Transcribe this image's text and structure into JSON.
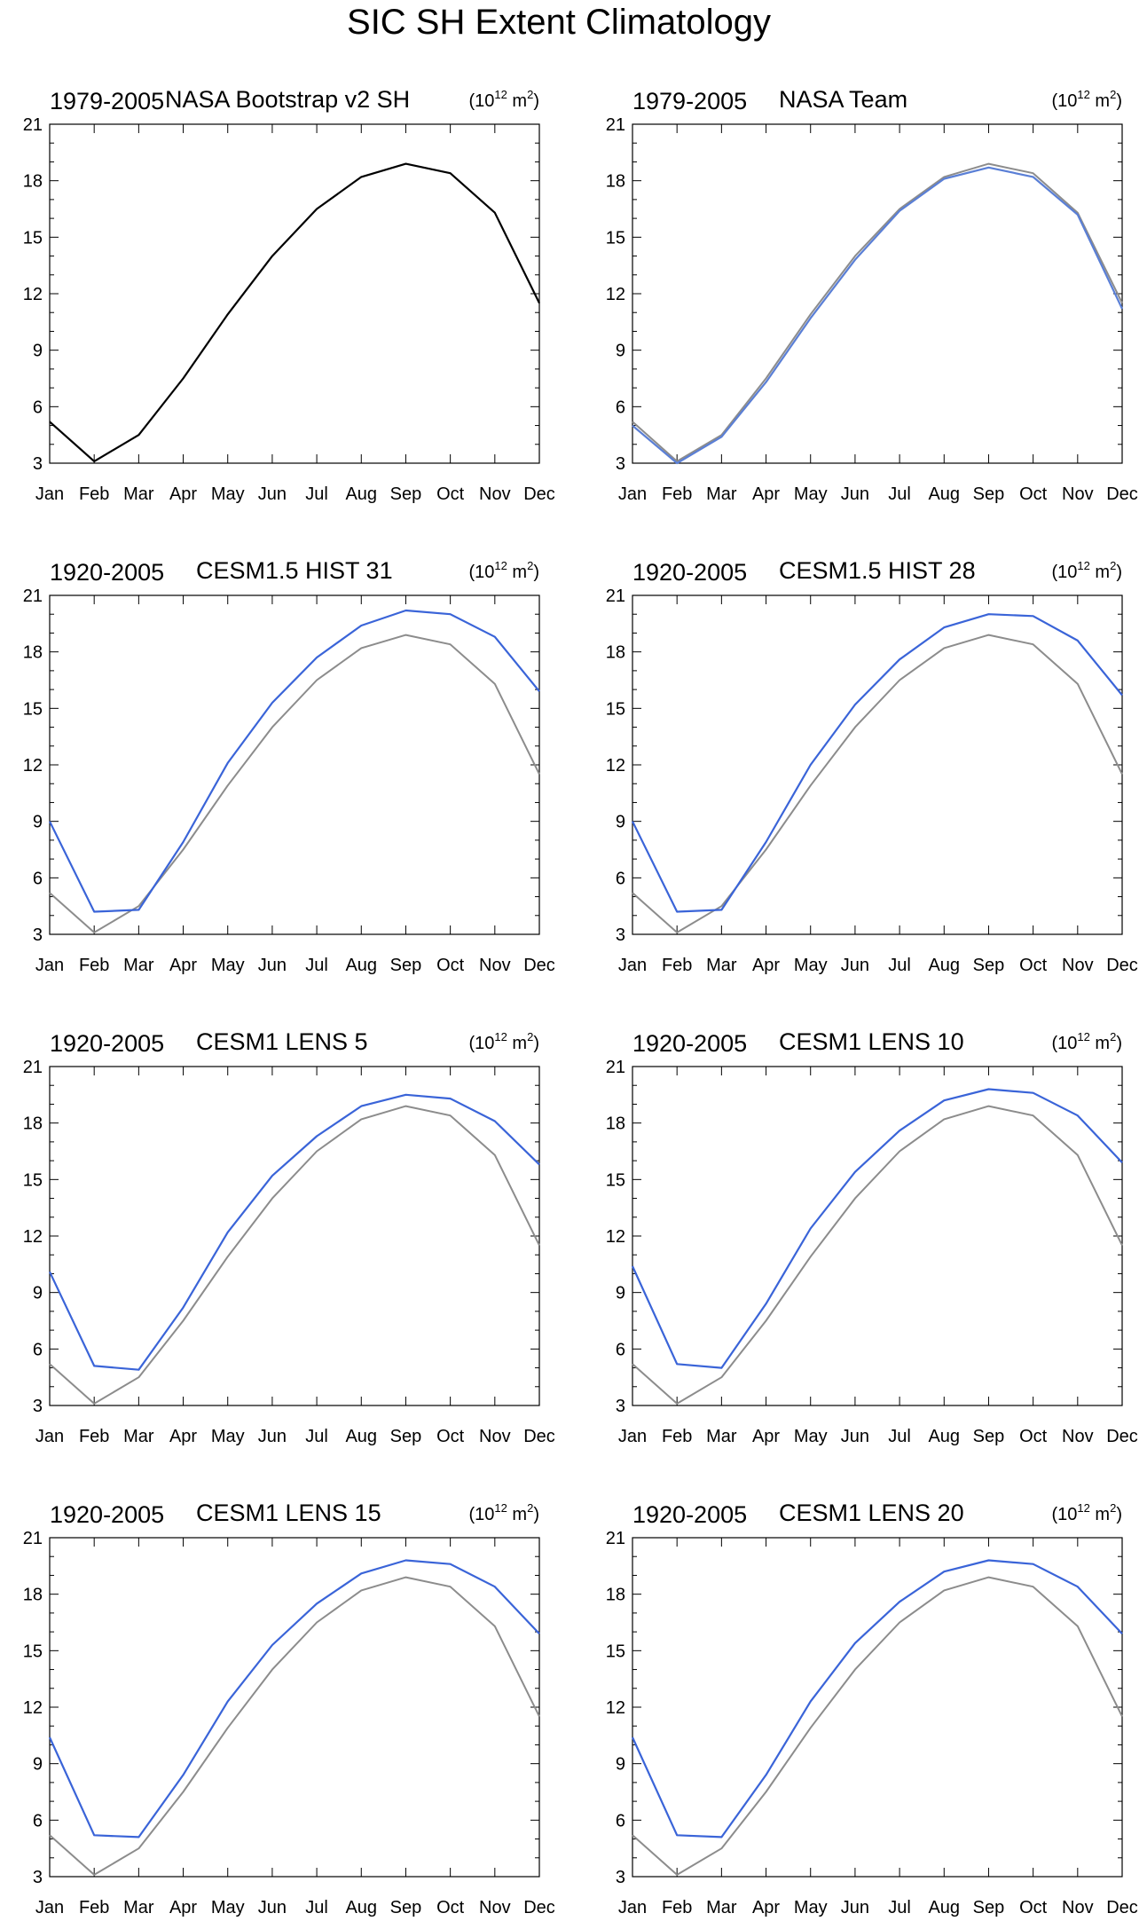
{
  "figure_title": "SIC SH Extent Climatology",
  "units": {
    "prefix": "(10",
    "exponent": "12",
    "middle": " m",
    "sq": "2",
    "suffix": ")"
  },
  "colors": {
    "obs": "#000000",
    "ref": "#8c8c8c",
    "model": "#3a64d8",
    "nasa_team": "#5a7fd6"
  },
  "chart_data": [
    {
      "type": "line",
      "period": "1979-2005",
      "title": "NASA Bootstrap v2 SH",
      "categories": [
        "Jan",
        "Feb",
        "Mar",
        "Apr",
        "May",
        "Jun",
        "Jul",
        "Aug",
        "Sep",
        "Oct",
        "Nov",
        "Dec"
      ],
      "ylim": [
        3,
        21
      ],
      "yticks": [
        "3",
        "6",
        "9",
        "12",
        "15",
        "18",
        "21"
      ],
      "series": [
        {
          "name": "NASA Bootstrap v2 SH",
          "color_key": "obs",
          "values": [
            5.2,
            3.1,
            4.5,
            7.5,
            10.9,
            14.0,
            16.5,
            18.2,
            18.9,
            18.4,
            16.3,
            11.5
          ]
        }
      ]
    },
    {
      "type": "line",
      "period": "1979-2005",
      "title": "NASA Team",
      "categories": [
        "Jan",
        "Feb",
        "Mar",
        "Apr",
        "May",
        "Jun",
        "Jul",
        "Aug",
        "Sep",
        "Oct",
        "Nov",
        "Dec"
      ],
      "ylim": [
        3,
        21
      ],
      "yticks": [
        "3",
        "6",
        "9",
        "12",
        "15",
        "18",
        "21"
      ],
      "series": [
        {
          "name": "NASA Bootstrap v2 SH",
          "color_key": "ref",
          "values": [
            5.2,
            3.1,
            4.5,
            7.5,
            10.9,
            14.0,
            16.5,
            18.2,
            18.9,
            18.4,
            16.3,
            11.5
          ]
        },
        {
          "name": "NASA Team",
          "color_key": "nasa_team",
          "values": [
            5.0,
            3.0,
            4.4,
            7.3,
            10.7,
            13.8,
            16.4,
            18.1,
            18.7,
            18.2,
            16.2,
            11.2
          ]
        }
      ]
    },
    {
      "type": "line",
      "period": "1920-2005",
      "title": "CESM1.5 HIST 31",
      "categories": [
        "Jan",
        "Feb",
        "Mar",
        "Apr",
        "May",
        "Jun",
        "Jul",
        "Aug",
        "Sep",
        "Oct",
        "Nov",
        "Dec"
      ],
      "ylim": [
        3,
        21
      ],
      "yticks": [
        "3",
        "6",
        "9",
        "12",
        "15",
        "18",
        "21"
      ],
      "series": [
        {
          "name": "NASA Bootstrap v2 SH",
          "color_key": "ref",
          "values": [
            5.2,
            3.1,
            4.5,
            7.5,
            10.9,
            14.0,
            16.5,
            18.2,
            18.9,
            18.4,
            16.3,
            11.5
          ]
        },
        {
          "name": "CESM1.5 HIST 31",
          "color_key": "model",
          "values": [
            9.0,
            4.2,
            4.3,
            7.9,
            12.1,
            15.3,
            17.7,
            19.4,
            20.2,
            20.0,
            18.8,
            15.9
          ]
        }
      ]
    },
    {
      "type": "line",
      "period": "1920-2005",
      "title": "CESM1.5 HIST 28",
      "categories": [
        "Jan",
        "Feb",
        "Mar",
        "Apr",
        "May",
        "Jun",
        "Jul",
        "Aug",
        "Sep",
        "Oct",
        "Nov",
        "Dec"
      ],
      "ylim": [
        3,
        21
      ],
      "yticks": [
        "3",
        "6",
        "9",
        "12",
        "15",
        "18",
        "21"
      ],
      "series": [
        {
          "name": "NASA Bootstrap v2 SH",
          "color_key": "ref",
          "values": [
            5.2,
            3.1,
            4.5,
            7.5,
            10.9,
            14.0,
            16.5,
            18.2,
            18.9,
            18.4,
            16.3,
            11.5
          ]
        },
        {
          "name": "CESM1.5 HIST 28",
          "color_key": "model",
          "values": [
            9.0,
            4.2,
            4.3,
            7.9,
            12.0,
            15.2,
            17.6,
            19.3,
            20.0,
            19.9,
            18.6,
            15.7
          ]
        }
      ]
    },
    {
      "type": "line",
      "period": "1920-2005",
      "title": "CESM1 LENS 5",
      "categories": [
        "Jan",
        "Feb",
        "Mar",
        "Apr",
        "May",
        "Jun",
        "Jul",
        "Aug",
        "Sep",
        "Oct",
        "Nov",
        "Dec"
      ],
      "ylim": [
        3,
        21
      ],
      "yticks": [
        "3",
        "6",
        "9",
        "12",
        "15",
        "18",
        "21"
      ],
      "series": [
        {
          "name": "NASA Bootstrap v2 SH",
          "color_key": "ref",
          "values": [
            5.2,
            3.1,
            4.5,
            7.5,
            10.9,
            14.0,
            16.5,
            18.2,
            18.9,
            18.4,
            16.3,
            11.5
          ]
        },
        {
          "name": "CESM1 LENS 5",
          "color_key": "model",
          "values": [
            10.1,
            5.1,
            4.9,
            8.2,
            12.2,
            15.2,
            17.3,
            18.9,
            19.5,
            19.3,
            18.1,
            15.8
          ]
        }
      ]
    },
    {
      "type": "line",
      "period": "1920-2005",
      "title": "CESM1 LENS 10",
      "categories": [
        "Jan",
        "Feb",
        "Mar",
        "Apr",
        "May",
        "Jun",
        "Jul",
        "Aug",
        "Sep",
        "Oct",
        "Nov",
        "Dec"
      ],
      "ylim": [
        3,
        21
      ],
      "yticks": [
        "3",
        "6",
        "9",
        "12",
        "15",
        "18",
        "21"
      ],
      "series": [
        {
          "name": "NASA Bootstrap v2 SH",
          "color_key": "ref",
          "values": [
            5.2,
            3.1,
            4.5,
            7.5,
            10.9,
            14.0,
            16.5,
            18.2,
            18.9,
            18.4,
            16.3,
            11.5
          ]
        },
        {
          "name": "CESM1 LENS 10",
          "color_key": "model",
          "values": [
            10.4,
            5.2,
            5.0,
            8.4,
            12.4,
            15.4,
            17.6,
            19.2,
            19.8,
            19.6,
            18.4,
            15.9
          ]
        }
      ]
    },
    {
      "type": "line",
      "period": "1920-2005",
      "title": "CESM1 LENS 15",
      "categories": [
        "Jan",
        "Feb",
        "Mar",
        "Apr",
        "May",
        "Jun",
        "Jul",
        "Aug",
        "Sep",
        "Oct",
        "Nov",
        "Dec"
      ],
      "ylim": [
        3,
        21
      ],
      "yticks": [
        "3",
        "6",
        "9",
        "12",
        "15",
        "18",
        "21"
      ],
      "series": [
        {
          "name": "NASA Bootstrap v2 SH",
          "color_key": "ref",
          "values": [
            5.2,
            3.1,
            4.5,
            7.5,
            10.9,
            14.0,
            16.5,
            18.2,
            18.9,
            18.4,
            16.3,
            11.5
          ]
        },
        {
          "name": "CESM1 LENS 15",
          "color_key": "model",
          "values": [
            10.4,
            5.2,
            5.1,
            8.4,
            12.3,
            15.3,
            17.5,
            19.1,
            19.8,
            19.6,
            18.4,
            15.9
          ]
        }
      ]
    },
    {
      "type": "line",
      "period": "1920-2005",
      "title": "CESM1 LENS 20",
      "categories": [
        "Jan",
        "Feb",
        "Mar",
        "Apr",
        "May",
        "Jun",
        "Jul",
        "Aug",
        "Sep",
        "Oct",
        "Nov",
        "Dec"
      ],
      "ylim": [
        3,
        21
      ],
      "yticks": [
        "3",
        "6",
        "9",
        "12",
        "15",
        "18",
        "21"
      ],
      "series": [
        {
          "name": "NASA Bootstrap v2 SH",
          "color_key": "ref",
          "values": [
            5.2,
            3.1,
            4.5,
            7.5,
            10.9,
            14.0,
            16.5,
            18.2,
            18.9,
            18.4,
            16.3,
            11.5
          ]
        },
        {
          "name": "CESM1 LENS 20",
          "color_key": "model",
          "values": [
            10.4,
            5.2,
            5.1,
            8.4,
            12.3,
            15.4,
            17.6,
            19.2,
            19.8,
            19.6,
            18.4,
            15.9
          ]
        }
      ]
    }
  ]
}
